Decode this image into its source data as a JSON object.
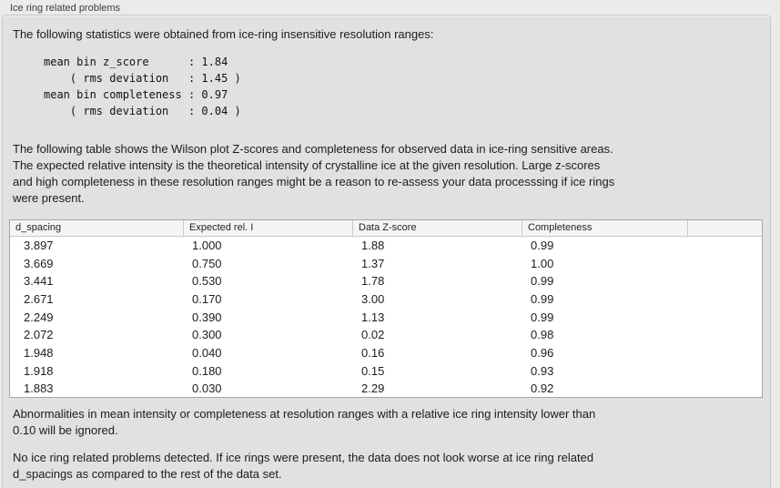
{
  "panel": {
    "title": "Ice ring related problems"
  },
  "intro": "The following statistics were obtained from ice-ring insensitive resolution ranges:",
  "stats_block": [
    "mean bin z_score      : 1.84",
    "    ( rms deviation   : 1.45 )",
    "mean bin completeness : 0.97",
    "    ( rms deviation   : 0.04 )"
  ],
  "table_description": [
    "The following table shows the Wilson plot Z-scores and completeness for observed data in ice-ring sensitive areas.",
    "The expected relative intensity is the theoretical intensity of crystalline ice at the given resolution. Large z-scores",
    "and high completeness in these resolution ranges might be a reason to re-assess your data processsing if ice rings",
    "were present."
  ],
  "table": {
    "headers": [
      "d_spacing",
      "Expected rel. I",
      "Data Z-score",
      "Completeness"
    ],
    "rows": [
      [
        "3.897",
        "1.000",
        "1.88",
        "0.99"
      ],
      [
        "3.669",
        "0.750",
        "1.37",
        "1.00"
      ],
      [
        "3.441",
        "0.530",
        "1.78",
        "0.99"
      ],
      [
        "2.671",
        "0.170",
        "3.00",
        "0.99"
      ],
      [
        "2.249",
        "0.390",
        "1.13",
        "0.99"
      ],
      [
        "2.072",
        "0.300",
        "0.02",
        "0.98"
      ],
      [
        "1.948",
        "0.040",
        "0.16",
        "0.96"
      ],
      [
        "1.918",
        "0.180",
        "0.15",
        "0.93"
      ],
      [
        "1.883",
        "0.030",
        "2.29",
        "0.92"
      ]
    ]
  },
  "note_ignore": [
    "Abnormalities in mean intensity or completeness at resolution ranges with a relative ice ring intensity lower than",
    "0.10 will be ignored."
  ],
  "conclusion": [
    "No ice ring related problems detected. If ice rings were present, the data does not look worse at ice ring related",
    "d_spacings as compared to the rest of the data set."
  ],
  "colors": {
    "page_bg": "#ebebeb",
    "panel_bg": "#e1e1e1",
    "panel_border": "#c7c7c7",
    "table_bg": "#ffffff",
    "table_border": "#a6a6a6",
    "header_bg": "#f5f5f5",
    "text": "#1c1c1c"
  }
}
